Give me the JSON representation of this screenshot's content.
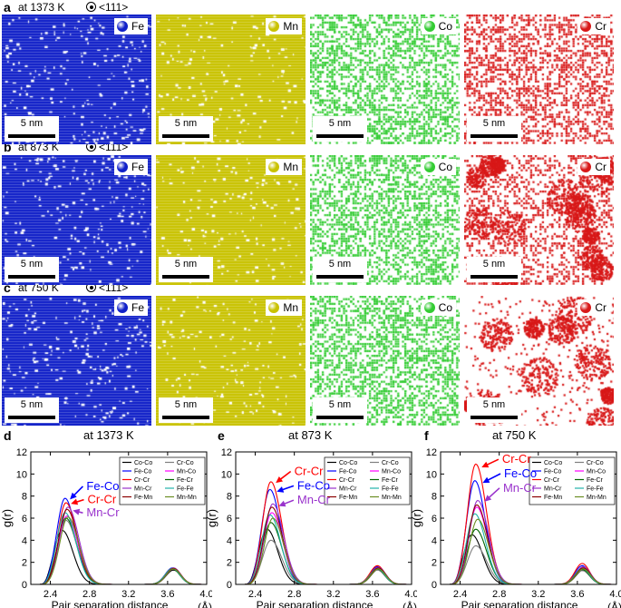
{
  "colors": {
    "Fe": "#1020c8",
    "Mn": "#c9c200",
    "Co": "#32cc32",
    "Cr": "#d81818"
  },
  "zone_axis": "<111>",
  "scale_bar": "5 nm",
  "elements": [
    "Fe",
    "Mn",
    "Co",
    "Cr"
  ],
  "rows": [
    {
      "letter": "a",
      "temp": "at 1373 K"
    },
    {
      "letter": "b",
      "temp": "at 873 K"
    },
    {
      "letter": "c",
      "temp": "at 750 K"
    }
  ],
  "plot_common": {
    "ylabel": "g(r)",
    "xlabel": "Pair separation distance",
    "xunit": "(Å)",
    "xticks": [
      "2.4",
      "2.8",
      "3.2",
      "3.6",
      "4.0"
    ],
    "yticks": [
      "0",
      "2",
      "4",
      "6",
      "8",
      "10",
      "12"
    ],
    "legend": [
      [
        "Co-Co",
        "Cr-Co"
      ],
      [
        "Fe-Co",
        "Mn-Co"
      ],
      [
        "Cr-Cr",
        "Fe-Cr"
      ],
      [
        "Mn-Cr",
        "Fe-Fe"
      ],
      [
        "Fe-Mn",
        "Mn-Mn"
      ]
    ]
  },
  "chart_data": [
    {
      "type": "line",
      "panel": "d",
      "title": "at 1373 K",
      "xlabel": "Pair separation distance (Å)",
      "ylabel": "g(r)",
      "xlim": [
        2.2,
        4.0
      ],
      "ylim": [
        0,
        12
      ],
      "series": [
        {
          "name": "Co-Co",
          "color": "#000000",
          "p1": 4.9,
          "p1x": 2.52,
          "p2": 1.3,
          "p2x": 3.66
        },
        {
          "name": "Cr-Co",
          "color": "#808080",
          "p1": 5.8,
          "p1x": 2.56,
          "p2": 1.4,
          "p2x": 3.65
        },
        {
          "name": "Fe-Co",
          "color": "#0000ff",
          "p1": 7.8,
          "p1x": 2.55,
          "p2": 1.5,
          "p2x": 3.65
        },
        {
          "name": "Mn-Co",
          "color": "#ff00ff",
          "p1": 6.2,
          "p1x": 2.57,
          "p2": 1.4,
          "p2x": 3.66
        },
        {
          "name": "Cr-Cr",
          "color": "#ff0000",
          "p1": 7.4,
          "p1x": 2.56,
          "p2": 1.45,
          "p2x": 3.65
        },
        {
          "name": "Fe-Cr",
          "color": "#006400",
          "p1": 6.0,
          "p1x": 2.56,
          "p2": 1.4,
          "p2x": 3.65
        },
        {
          "name": "Mn-Cr",
          "color": "#9932cc",
          "p1": 7.0,
          "p1x": 2.58,
          "p2": 1.5,
          "p2x": 3.66
        },
        {
          "name": "Fe-Fe",
          "color": "#20b2aa",
          "p1": 6.5,
          "p1x": 2.55,
          "p2": 1.45,
          "p2x": 3.65
        },
        {
          "name": "Fe-Mn",
          "color": "#8b0000",
          "p1": 6.8,
          "p1x": 2.57,
          "p2": 1.45,
          "p2x": 3.66
        },
        {
          "name": "Mn-Mn",
          "color": "#6b8e23",
          "p1": 6.1,
          "p1x": 2.58,
          "p2": 1.4,
          "p2x": 3.66
        }
      ],
      "annotations": [
        {
          "text": "Fe-Co",
          "color": "#0000ff",
          "tx": 2.77,
          "ty": 8.55,
          "ax": 2.6,
          "ay": 7.7
        },
        {
          "text": "Cr-Cr",
          "color": "#ff0000",
          "tx": 2.78,
          "ty": 7.35,
          "ax": 2.61,
          "ay": 7.3
        },
        {
          "text": "Mn-Cr",
          "color": "#9932cc",
          "tx": 2.77,
          "ty": 6.15,
          "ax": 2.63,
          "ay": 6.7
        }
      ]
    },
    {
      "type": "line",
      "panel": "e",
      "title": "at 873 K",
      "xlabel": "Pair separation distance (Å)",
      "ylabel": "g(r)",
      "xlim": [
        2.2,
        4.0
      ],
      "ylim": [
        0,
        12
      ],
      "series": [
        {
          "name": "Co-Co",
          "color": "#000000",
          "p1": 5.0,
          "p1x": 2.52,
          "p2": 1.35,
          "p2x": 3.66
        },
        {
          "name": "Cr-Co",
          "color": "#808080",
          "p1": 4.0,
          "p1x": 2.56,
          "p2": 1.3,
          "p2x": 3.65
        },
        {
          "name": "Fe-Co",
          "color": "#0000ff",
          "p1": 8.6,
          "p1x": 2.55,
          "p2": 1.6,
          "p2x": 3.65
        },
        {
          "name": "Mn-Co",
          "color": "#ff00ff",
          "p1": 6.5,
          "p1x": 2.57,
          "p2": 1.45,
          "p2x": 3.66
        },
        {
          "name": "Cr-Cr",
          "color": "#ff0000",
          "p1": 9.3,
          "p1x": 2.56,
          "p2": 1.7,
          "p2x": 3.65
        },
        {
          "name": "Fe-Cr",
          "color": "#006400",
          "p1": 5.6,
          "p1x": 2.56,
          "p2": 1.4,
          "p2x": 3.65
        },
        {
          "name": "Mn-Cr",
          "color": "#9932cc",
          "p1": 7.3,
          "p1x": 2.58,
          "p2": 1.55,
          "p2x": 3.66
        },
        {
          "name": "Fe-Fe",
          "color": "#20b2aa",
          "p1": 6.3,
          "p1x": 2.55,
          "p2": 1.45,
          "p2x": 3.65
        },
        {
          "name": "Fe-Mn",
          "color": "#8b0000",
          "p1": 7.0,
          "p1x": 2.57,
          "p2": 1.5,
          "p2x": 3.66
        },
        {
          "name": "Mn-Mn",
          "color": "#6b8e23",
          "p1": 6.0,
          "p1x": 2.58,
          "p2": 1.4,
          "p2x": 3.66
        }
      ],
      "annotations": [
        {
          "text": "Cr-Cr",
          "color": "#ff0000",
          "tx": 2.8,
          "ty": 9.9,
          "ax": 2.61,
          "ay": 9.2
        },
        {
          "text": "Fe-Co",
          "color": "#0000ff",
          "tx": 2.83,
          "ty": 8.6,
          "ax": 2.62,
          "ay": 8.4
        },
        {
          "text": "Mn-Cr",
          "color": "#9932cc",
          "tx": 2.83,
          "ty": 7.3,
          "ax": 2.64,
          "ay": 7.1
        }
      ]
    },
    {
      "type": "line",
      "panel": "f",
      "title": "at 750 K",
      "xlabel": "Pair separation distance (Å)",
      "ylabel": "g(r)",
      "xlim": [
        2.2,
        4.0
      ],
      "ylim": [
        0,
        12
      ],
      "series": [
        {
          "name": "Co-Co",
          "color": "#000000",
          "p1": 4.5,
          "p1x": 2.52,
          "p2": 1.3,
          "p2x": 3.66
        },
        {
          "name": "Cr-Co",
          "color": "#808080",
          "p1": 3.5,
          "p1x": 2.56,
          "p2": 1.25,
          "p2x": 3.65
        },
        {
          "name": "Fe-Co",
          "color": "#0000ff",
          "p1": 9.4,
          "p1x": 2.55,
          "p2": 1.7,
          "p2x": 3.65
        },
        {
          "name": "Mn-Co",
          "color": "#ff00ff",
          "p1": 7.0,
          "p1x": 2.57,
          "p2": 1.5,
          "p2x": 3.66
        },
        {
          "name": "Cr-Cr",
          "color": "#ff0000",
          "p1": 10.9,
          "p1x": 2.56,
          "p2": 1.9,
          "p2x": 3.65
        },
        {
          "name": "Fe-Cr",
          "color": "#006400",
          "p1": 5.0,
          "p1x": 2.56,
          "p2": 1.35,
          "p2x": 3.65
        },
        {
          "name": "Mn-Cr",
          "color": "#9932cc",
          "p1": 7.6,
          "p1x": 2.58,
          "p2": 1.6,
          "p2x": 3.66
        },
        {
          "name": "Fe-Fe",
          "color": "#20b2aa",
          "p1": 6.4,
          "p1x": 2.55,
          "p2": 1.45,
          "p2x": 3.65
        },
        {
          "name": "Fe-Mn",
          "color": "#8b0000",
          "p1": 7.2,
          "p1x": 2.57,
          "p2": 1.5,
          "p2x": 3.66
        },
        {
          "name": "Mn-Mn",
          "color": "#6b8e23",
          "p1": 5.9,
          "p1x": 2.58,
          "p2": 1.4,
          "p2x": 3.66
        }
      ],
      "annotations": [
        {
          "text": "Cr-Cr",
          "color": "#ff0000",
          "tx": 2.83,
          "ty": 11.0,
          "ax": 2.62,
          "ay": 10.6
        },
        {
          "text": "Fe-Co",
          "color": "#0000ff",
          "tx": 2.85,
          "ty": 9.7,
          "ax": 2.63,
          "ay": 9.2
        },
        {
          "text": "Mn-Cr",
          "color": "#9932cc",
          "tx": 2.84,
          "ty": 8.4,
          "ax": 2.65,
          "ay": 7.5
        }
      ]
    }
  ]
}
